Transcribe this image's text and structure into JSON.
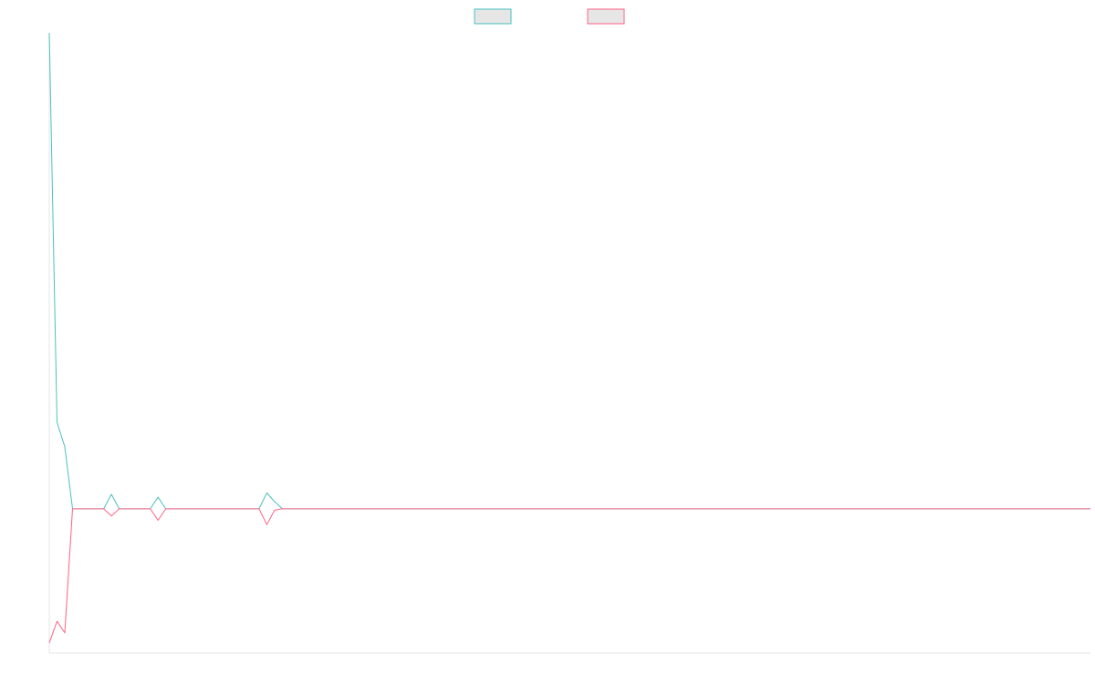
{
  "chart_data": {
    "type": "line",
    "title": "",
    "xlabel": "",
    "ylabel": "",
    "x": [
      0,
      1,
      2,
      3,
      4,
      5,
      6,
      7,
      8,
      9,
      10,
      11,
      12,
      13,
      14,
      15,
      16,
      17,
      18,
      19,
      20,
      21,
      22,
      23,
      24,
      25,
      26,
      27,
      28,
      29,
      30,
      31,
      32,
      33,
      34,
      35,
      36,
      37,
      38,
      39,
      40,
      41,
      42,
      43,
      44,
      45,
      46,
      47,
      48,
      49,
      50,
      51,
      52,
      53,
      54,
      55,
      56,
      57,
      58,
      59,
      60,
      61,
      62,
      63,
      64,
      65,
      66,
      67,
      68,
      69,
      70,
      71,
      72,
      73,
      74,
      75,
      76,
      77,
      78,
      79,
      80,
      81,
      82,
      83,
      84,
      85,
      86,
      87,
      88,
      89,
      90,
      91,
      92,
      93,
      94,
      95,
      96,
      97,
      98,
      99,
      100,
      101,
      102,
      103,
      104,
      105,
      106,
      107,
      108,
      109,
      110,
      111,
      112,
      113,
      114,
      115,
      116,
      117,
      118,
      119,
      120,
      121,
      122,
      123,
      124,
      125,
      126,
      127,
      128,
      129,
      130,
      131,
      132,
      133,
      134
    ],
    "ylim": [
      -1,
      3.3
    ],
    "xlim": [
      0,
      134
    ],
    "grid": false,
    "legend_position": "top",
    "series": [
      {
        "name": "",
        "color": "#4bc0c0",
        "values": [
          3.3,
          0.6,
          0.43,
          0.0,
          0.0,
          0.0,
          0.0,
          0.0,
          0.1,
          0.0,
          0.0,
          0.0,
          0.0,
          0.0,
          0.08,
          0.0,
          0.0,
          0.0,
          0.0,
          0.0,
          0.0,
          0.0,
          0.0,
          0.0,
          0.0,
          0.0,
          0.0,
          0.0,
          0.11,
          0.05,
          0.0,
          0.0,
          0.0,
          0.0,
          0.0,
          0.0,
          0.0,
          0.0,
          0.0,
          0.0,
          0.0,
          0.0,
          0.0,
          0.0,
          0.0,
          0.0,
          0.0,
          0.0,
          0.0,
          0.0,
          0.0,
          0.0,
          0.0,
          0.0,
          0.0,
          0.0,
          0.0,
          0.0,
          0.0,
          0.0,
          0.0,
          0.0,
          0.0,
          0.0,
          0.0,
          0.0,
          0.0,
          0.0,
          0.0,
          0.0,
          0.0,
          0.0,
          0.0,
          0.0,
          0.0,
          0.0,
          0.0,
          0.0,
          0.0,
          0.0,
          0.0,
          0.0,
          0.0,
          0.0,
          0.0,
          0.0,
          0.0,
          0.0,
          0.0,
          0.0,
          0.0,
          0.0,
          0.0,
          0.0,
          0.0,
          0.0,
          0.0,
          0.0,
          0.0,
          0.0,
          0.0,
          0.0,
          0.0,
          0.0,
          0.0,
          0.0,
          0.0,
          0.0,
          0.0,
          0.0,
          0.0,
          0.0,
          0.0,
          0.0,
          0.0,
          0.0,
          0.0,
          0.0,
          0.0,
          0.0,
          0.0,
          0.0,
          0.0,
          0.0,
          0.0,
          0.0,
          0.0,
          0.0,
          0.0,
          0.0,
          0.0,
          0.0,
          0.0,
          0.0,
          0.0
        ]
      },
      {
        "name": "",
        "color": "#ff6384",
        "values": [
          -0.93,
          -0.78,
          -0.86,
          0.0,
          0.0,
          0.0,
          0.0,
          0.0,
          -0.05,
          0.0,
          0.0,
          0.0,
          0.0,
          0.0,
          -0.08,
          0.0,
          0.0,
          0.0,
          0.0,
          0.0,
          0.0,
          0.0,
          0.0,
          0.0,
          0.0,
          0.0,
          0.0,
          0.0,
          -0.11,
          -0.01,
          0.0,
          0.0,
          0.0,
          0.0,
          0.0,
          0.0,
          0.0,
          0.0,
          0.0,
          0.0,
          0.0,
          0.0,
          0.0,
          0.0,
          0.0,
          0.0,
          0.0,
          0.0,
          0.0,
          0.0,
          0.0,
          0.0,
          0.0,
          0.0,
          0.0,
          0.0,
          0.0,
          0.0,
          0.0,
          0.0,
          0.0,
          0.0,
          0.0,
          0.0,
          0.0,
          0.0,
          0.0,
          0.0,
          0.0,
          0.0,
          0.0,
          0.0,
          0.0,
          0.0,
          0.0,
          0.0,
          0.0,
          0.0,
          0.0,
          0.0,
          0.0,
          0.0,
          0.0,
          0.0,
          0.0,
          0.0,
          0.0,
          0.0,
          0.0,
          0.0,
          0.0,
          0.0,
          0.0,
          0.0,
          0.0,
          0.0,
          0.0,
          0.0,
          0.0,
          0.0,
          0.0,
          0.0,
          0.0,
          0.0,
          0.0,
          0.0,
          0.0,
          0.0,
          0.0,
          0.0,
          0.0,
          0.0,
          0.0,
          0.0,
          0.0,
          0.0,
          0.0,
          0.0,
          0.0,
          0.0,
          0.0,
          0.0,
          0.0,
          0.0,
          0.0,
          0.0,
          0.0,
          0.0,
          0.0,
          0.0,
          0.0,
          0.0,
          0.0,
          0.0,
          0.0
        ]
      }
    ]
  }
}
